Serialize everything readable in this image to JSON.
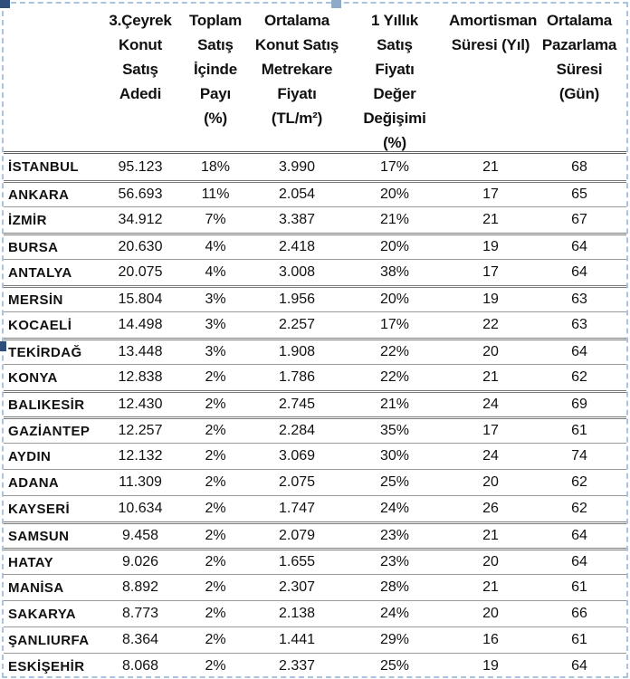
{
  "page": {
    "background_color": "#ffffff",
    "frame_border_color": "#aac3df",
    "handle_dark_color": "#2e4d7b",
    "handle_light_color": "#8fa9c9",
    "divider_color": "#9a9a9a",
    "header_divider_color": "#5f5f5f"
  },
  "table": {
    "headers": [
      {
        "label": ""
      },
      {
        "label": "3.Çeyrek\nKonut\nSatış\nAdedi"
      },
      {
        "label": "Toplam\nSatış\nİçinde\nPayı\n(%)"
      },
      {
        "label": "Ortalama\nKonut Satış\nMetrekare\nFiyatı\n(TL/m²)"
      },
      {
        "label": "1 Yıllık\nSatış\nFiyatı\nDeğer\nDeğişimi\n(%)"
      },
      {
        "label": "Amortisman\nSüresi (Yıl)"
      },
      {
        "label": "Ortalama\nPazarlama\nSüresi\n(Gün)"
      }
    ],
    "rows": [
      {
        "city": "İSTANBUL",
        "q3_sales": "95.123",
        "share": "18%",
        "sqm_price": "3.990",
        "yearly_change": "17%",
        "amortization_years": "21",
        "marketing_days": "68",
        "divider": "none"
      },
      {
        "city": "ANKARA",
        "q3_sales": "56.693",
        "share": "11%",
        "sqm_price": "2.054",
        "yearly_change": "20%",
        "amortization_years": "17",
        "marketing_days": "65",
        "divider": "double"
      },
      {
        "city": "İZMİR",
        "q3_sales": "34.912",
        "share": "7%",
        "sqm_price": "3.387",
        "yearly_change": "21%",
        "amortization_years": "21",
        "marketing_days": "67",
        "divider": "single"
      },
      {
        "city": "BURSA",
        "q3_sales": "20.630",
        "share": "4%",
        "sqm_price": "2.418",
        "yearly_change": "20%",
        "amortization_years": "19",
        "marketing_days": "64",
        "divider": "double"
      },
      {
        "city": "ANTALYA",
        "q3_sales": "20.075",
        "share": "4%",
        "sqm_price": "3.008",
        "yearly_change": "38%",
        "amortization_years": "17",
        "marketing_days": "64",
        "divider": "single"
      },
      {
        "city": "MERSİN",
        "q3_sales": "15.804",
        "share": "3%",
        "sqm_price": "1.956",
        "yearly_change": "20%",
        "amortization_years": "19",
        "marketing_days": "63",
        "divider": "double"
      },
      {
        "city": "KOCAELİ",
        "q3_sales": "14.498",
        "share": "3%",
        "sqm_price": "2.257",
        "yearly_change": "17%",
        "amortization_years": "22",
        "marketing_days": "63",
        "divider": "single"
      },
      {
        "city": "TEKİRDAĞ",
        "q3_sales": "13.448",
        "share": "3%",
        "sqm_price": "1.908",
        "yearly_change": "22%",
        "amortization_years": "20",
        "marketing_days": "64",
        "divider": "double"
      },
      {
        "city": "KONYA",
        "q3_sales": "12.838",
        "share": "2%",
        "sqm_price": "1.786",
        "yearly_change": "22%",
        "amortization_years": "21",
        "marketing_days": "62",
        "divider": "single"
      },
      {
        "city": "BALIKESİR",
        "q3_sales": "12.430",
        "share": "2%",
        "sqm_price": "2.745",
        "yearly_change": "21%",
        "amortization_years": "24",
        "marketing_days": "69",
        "divider": "double"
      },
      {
        "city": "GAZİANTEP",
        "q3_sales": "12.257",
        "share": "2%",
        "sqm_price": "2.284",
        "yearly_change": "35%",
        "amortization_years": "17",
        "marketing_days": "61",
        "divider": "double"
      },
      {
        "city": "AYDIN",
        "q3_sales": "12.132",
        "share": "2%",
        "sqm_price": "3.069",
        "yearly_change": "30%",
        "amortization_years": "24",
        "marketing_days": "74",
        "divider": "single"
      },
      {
        "city": "ADANA",
        "q3_sales": "11.309",
        "share": "2%",
        "sqm_price": "2.075",
        "yearly_change": "25%",
        "amortization_years": "20",
        "marketing_days": "62",
        "divider": "single"
      },
      {
        "city": "KAYSERİ",
        "q3_sales": "10.634",
        "share": "2%",
        "sqm_price": "1.747",
        "yearly_change": "24%",
        "amortization_years": "26",
        "marketing_days": "62",
        "divider": "single"
      },
      {
        "city": "SAMSUN",
        "q3_sales": "9.458",
        "share": "2%",
        "sqm_price": "2.079",
        "yearly_change": "23%",
        "amortization_years": "21",
        "marketing_days": "64",
        "divider": "double"
      },
      {
        "city": "HATAY",
        "q3_sales": "9.026",
        "share": "2%",
        "sqm_price": "1.655",
        "yearly_change": "23%",
        "amortization_years": "20",
        "marketing_days": "64",
        "divider": "double"
      },
      {
        "city": "MANİSA",
        "q3_sales": "8.892",
        "share": "2%",
        "sqm_price": "2.307",
        "yearly_change": "28%",
        "amortization_years": "21",
        "marketing_days": "61",
        "divider": "single"
      },
      {
        "city": "SAKARYA",
        "q3_sales": "8.773",
        "share": "2%",
        "sqm_price": "2.138",
        "yearly_change": "24%",
        "amortization_years": "20",
        "marketing_days": "66",
        "divider": "single"
      },
      {
        "city": "ŞANLIURFA",
        "q3_sales": "8.364",
        "share": "2%",
        "sqm_price": "1.441",
        "yearly_change": "29%",
        "amortization_years": "16",
        "marketing_days": "61",
        "divider": "single"
      },
      {
        "city": "ESKİŞEHİR",
        "q3_sales": "8.068",
        "share": "2%",
        "sqm_price": "2.337",
        "yearly_change": "25%",
        "amortization_years": "19",
        "marketing_days": "64",
        "divider": "single"
      }
    ]
  }
}
